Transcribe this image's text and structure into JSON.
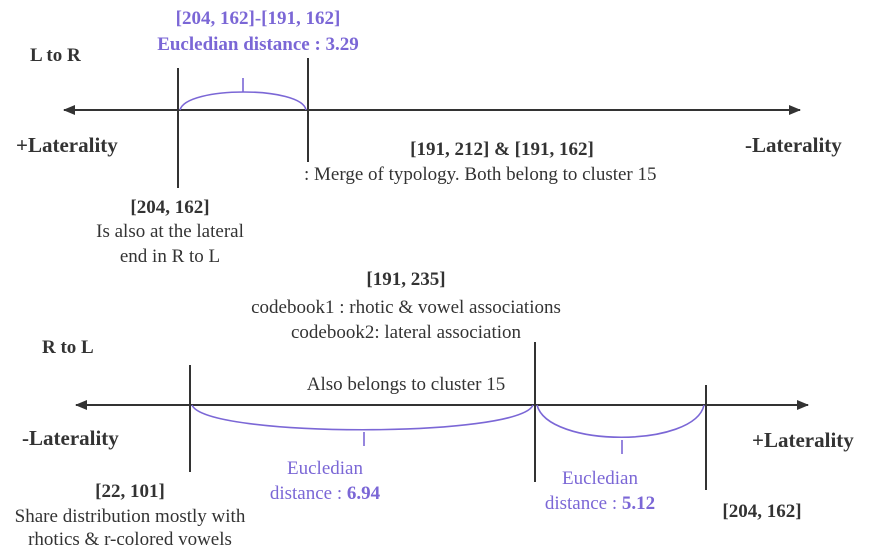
{
  "colors": {
    "line": "#333333",
    "accent": "#7b67d6",
    "text": "#2b2b2b"
  },
  "top": {
    "pair_label": "[204, 162]-[191, 162]",
    "distance_label": "Eucledian distance : 3.29",
    "direction": "L to R",
    "left_end": "+Laterality",
    "right_end": "-Laterality",
    "merge_title": "[191, 212] & [191, 162]",
    "merge_note": ": Merge of typology. Both belong to cluster 15",
    "point_title": "[204, 162]",
    "point_note_1": "Is also at the lateral",
    "point_note_2": "end in R to L"
  },
  "bottom": {
    "center_title": "[191, 235]",
    "center_note_1": "codebook1 : rhotic & vowel associations",
    "center_note_2": "codebook2: lateral association",
    "direction": "R to L",
    "cluster_note": "Also belongs to cluster 15",
    "left_end": "-Laterality",
    "right_end": "+Laterality",
    "dist1_label": "Eucledian",
    "dist1_prefix": "distance : ",
    "dist1_value": "6.94",
    "dist2_label": "Eucledian",
    "dist2_prefix": "distance : ",
    "dist2_value": "5.12",
    "left_point_title": "[22, 101]",
    "left_point_note_1": "Share distribution mostly with",
    "left_point_note_2": "rhotics & r-colored vowels",
    "right_point_title": "[204, 162]"
  }
}
